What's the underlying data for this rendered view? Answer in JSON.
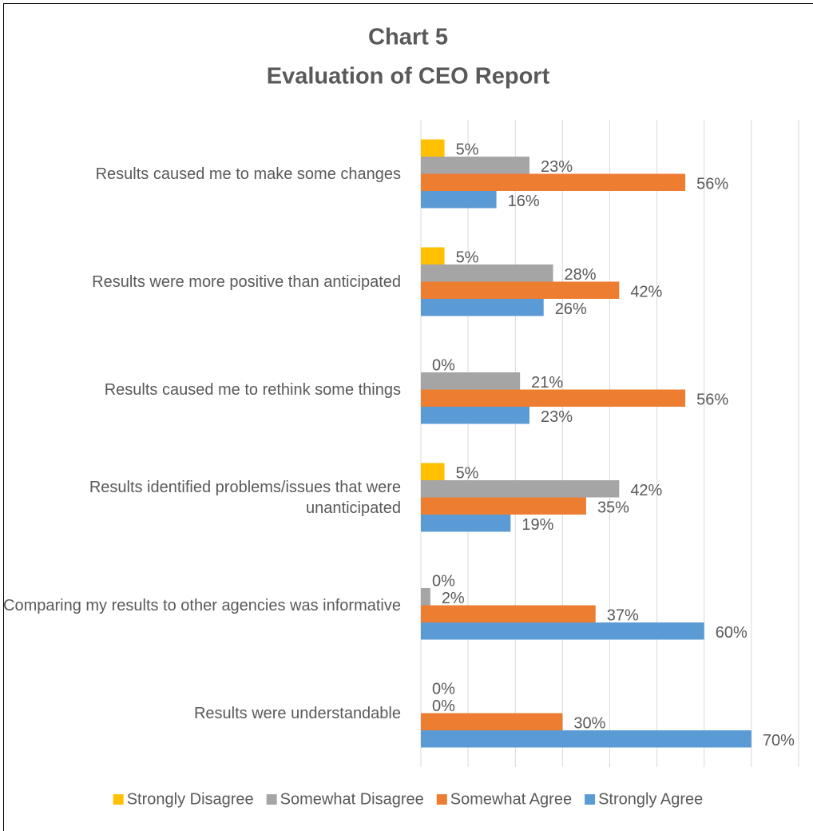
{
  "chart_data": {
    "type": "bar",
    "orientation": "horizontal",
    "title": [
      "Chart 5",
      "Evaluation of CEO Report"
    ],
    "categories": [
      "Results caused me to make some changes",
      "Results were more positive than anticipated",
      "Results caused me to rethink some things",
      "Results identified problems/issues that were unanticipated",
      "Comparing my results to other agencies was informative",
      "Results were understandable"
    ],
    "series": [
      {
        "name": "Strongly Disagree",
        "color": "#FFC000",
        "values": [
          5,
          5,
          0,
          5,
          0,
          0
        ],
        "value_labels": [
          "5%",
          "5%",
          "0%",
          "5%",
          "0%",
          "0%"
        ]
      },
      {
        "name": "Somewhat Disagree",
        "color": "#A5A5A5",
        "values": [
          23,
          28,
          21,
          42,
          2,
          0
        ],
        "value_labels": [
          "23%",
          "28%",
          "21%",
          "42%",
          "2%",
          "0%"
        ]
      },
      {
        "name": "Somewhat Agree",
        "color": "#ED7D31",
        "values": [
          56,
          42,
          56,
          35,
          37,
          30
        ],
        "value_labels": [
          "56%",
          "42%",
          "56%",
          "35%",
          "37%",
          "30%"
        ]
      },
      {
        "name": "Strongly Agree",
        "color": "#5B9BD5",
        "values": [
          16,
          26,
          23,
          19,
          60,
          70
        ],
        "value_labels": [
          "16%",
          "26%",
          "23%",
          "19%",
          "60%",
          "70%"
        ]
      }
    ],
    "xlim": [
      0,
      80
    ],
    "xticks": [
      0,
      10,
      20,
      30,
      40,
      50,
      60,
      70,
      80
    ],
    "grid": true,
    "legend": "bottom"
  }
}
